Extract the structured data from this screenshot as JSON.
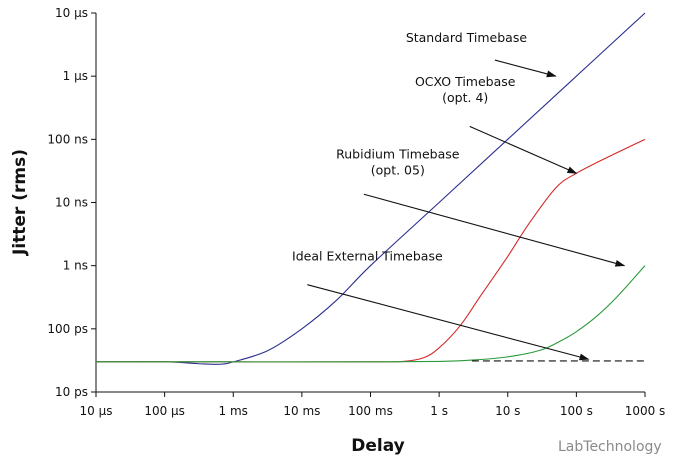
{
  "chart_data": {
    "type": "line",
    "xlabel": "Delay",
    "ylabel": "Jitter (rms)",
    "x_scale": "log",
    "y_scale": "log",
    "x_unit": "s",
    "y_unit": "s",
    "xlim": [
      1e-05,
      1000
    ],
    "ylim": [
      1e-11,
      1e-05
    ],
    "grid": false,
    "x_ticks": [
      {
        "value": 1e-05,
        "label": "10 µs"
      },
      {
        "value": 0.0001,
        "label": "100 µs"
      },
      {
        "value": 0.001,
        "label": "1 ms"
      },
      {
        "value": 0.01,
        "label": "10 ms"
      },
      {
        "value": 0.1,
        "label": "100 ms"
      },
      {
        "value": 1,
        "label": "1 s"
      },
      {
        "value": 10,
        "label": "10 s"
      },
      {
        "value": 100,
        "label": "100 s"
      },
      {
        "value": 1000,
        "label": "1000 s"
      }
    ],
    "y_ticks": [
      {
        "value": 1e-11,
        "label": "10 ps"
      },
      {
        "value": 1e-10,
        "label": "100 ps"
      },
      {
        "value": 1e-09,
        "label": "1 ns"
      },
      {
        "value": 1e-08,
        "label": "10 ns"
      },
      {
        "value": 1e-07,
        "label": "100 ns"
      },
      {
        "value": 1e-06,
        "label": "1 µs"
      },
      {
        "value": 1e-05,
        "label": "10 µs"
      }
    ],
    "series": [
      {
        "name": "Standard Timebase",
        "color": "#2b2f8f",
        "dash": "solid",
        "points": [
          [
            1e-05,
            3e-11
          ],
          [
            0.0001,
            3e-11
          ],
          [
            0.000316,
            2.8e-11
          ],
          [
            0.00063,
            2.75e-11
          ],
          [
            0.001,
            3e-11
          ],
          [
            0.00316,
            4.5e-11
          ],
          [
            0.01,
            1e-10
          ],
          [
            0.0316,
            2.8e-10
          ],
          [
            0.1,
            1e-09
          ],
          [
            1,
            1e-08
          ],
          [
            10,
            1e-07
          ],
          [
            100,
            1e-06
          ],
          [
            1000,
            1e-05
          ]
        ]
      },
      {
        "name": "OCXO Timebase\n(opt. 4)",
        "color": "#d42a2a",
        "dash": "solid",
        "points": [
          [
            1e-05,
            3e-11
          ],
          [
            0.001,
            3e-11
          ],
          [
            0.1,
            3e-11
          ],
          [
            0.3,
            3.05e-11
          ],
          [
            0.6,
            3.5e-11
          ],
          [
            1,
            5e-11
          ],
          [
            2,
            1.1e-10
          ],
          [
            4,
            3.3e-10
          ],
          [
            10,
            1.4e-09
          ],
          [
            20,
            4.5e-09
          ],
          [
            50,
            1.7e-08
          ],
          [
            100,
            2.9e-08
          ],
          [
            316,
            5.5e-08
          ],
          [
            1000,
            1e-07
          ]
        ]
      },
      {
        "name": "Rubidium Timebase\n(opt. 05)",
        "color": "#2a9a3a",
        "dash": "solid",
        "points": [
          [
            1e-05,
            3e-11
          ],
          [
            0.001,
            3e-11
          ],
          [
            0.1,
            3e-11
          ],
          [
            1,
            3.05e-11
          ],
          [
            3,
            3.2e-11
          ],
          [
            10,
            3.6e-11
          ],
          [
            30,
            4.6e-11
          ],
          [
            60,
            6.5e-11
          ],
          [
            100,
            9e-11
          ],
          [
            200,
            1.6e-10
          ],
          [
            400,
            3.3e-10
          ],
          [
            1000,
            1e-09
          ]
        ]
      },
      {
        "name": "Ideal External Timebase",
        "color": "#111111",
        "dash": "dashed",
        "points": [
          [
            3,
            3.1e-11
          ],
          [
            1000,
            3.1e-11
          ]
        ]
      }
    ],
    "annotations": [
      {
        "text": "Standard Timebase",
        "label_x": 2.5,
        "label_y": 3.5e-06,
        "arrow_from": [
          6.5,
          1.8e-06
        ],
        "arrow_to": [
          50,
          1e-06
        ]
      },
      {
        "text": "OCXO Timebase\n(opt. 4)",
        "label_x": 2.4,
        "label_y": 7e-07,
        "arrow_from": [
          2.8,
          1.6e-07
        ],
        "arrow_to": [
          100,
          2.9e-08
        ]
      },
      {
        "text": "Rubidium Timebase\n(opt. 05)",
        "label_x": 0.25,
        "label_y": 5e-08,
        "arrow_from": [
          0.08,
          1.35e-08
        ],
        "arrow_to": [
          500,
          1e-09
        ]
      },
      {
        "text": "Ideal External Timebase",
        "label_x": 0.09,
        "label_y": 1.2e-09,
        "arrow_from": [
          0.012,
          5e-10
        ],
        "arrow_to": [
          150,
          3.3e-11
        ]
      }
    ]
  },
  "watermark": "LabTechnology"
}
